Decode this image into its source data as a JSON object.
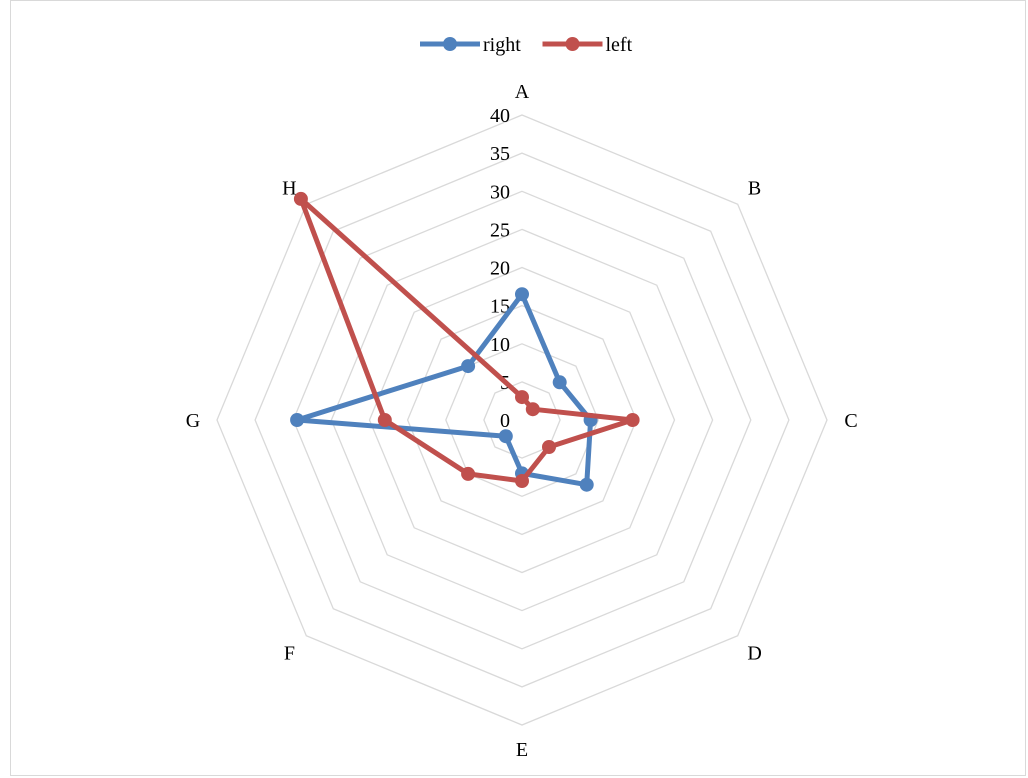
{
  "chart_data": {
    "type": "radar",
    "categories": [
      "A",
      "B",
      "C",
      "D",
      "E",
      "F",
      "G",
      "H"
    ],
    "radial_ticks": [
      "0",
      "5",
      "10",
      "15",
      "20",
      "25",
      "30",
      "35",
      "40"
    ],
    "rmax": 40,
    "grid": true,
    "legend": "top",
    "series": [
      {
        "name": "right",
        "color": "#4F81BD",
        "values": [
          16.5,
          7,
          9,
          12,
          7,
          3,
          29.5,
          10
        ]
      },
      {
        "name": "left",
        "color": "#C0504D",
        "values": [
          3,
          2,
          14.5,
          5,
          8,
          10,
          18,
          41
        ]
      }
    ],
    "grid_color": "#d9d9d9"
  }
}
